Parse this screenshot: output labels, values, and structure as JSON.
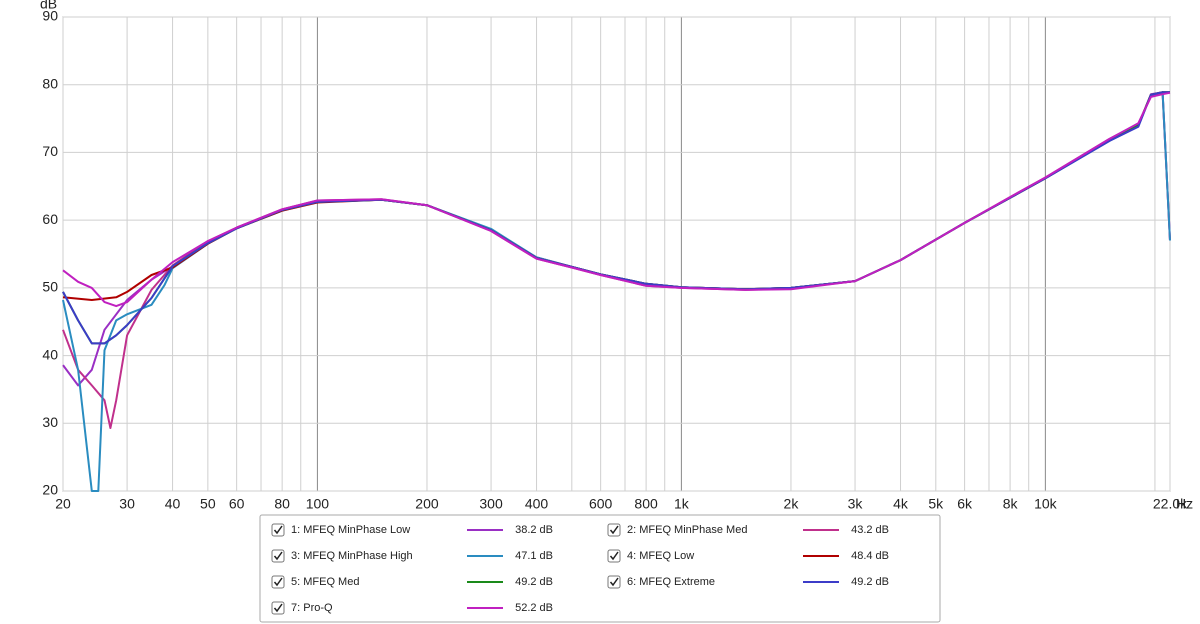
{
  "chart_data": {
    "type": "line",
    "x_label": "Hz",
    "y_label": "dB",
    "log_x": true,
    "xlim": [
      20,
      22000
    ],
    "ylim": [
      20,
      90
    ],
    "xticks": [
      20,
      30,
      40,
      50,
      60,
      80,
      100,
      200,
      300,
      400,
      600,
      800,
      {
        "value": 1000,
        "label": "1k"
      },
      {
        "value": 2000,
        "label": "2k"
      },
      {
        "value": 3000,
        "label": "3k"
      },
      {
        "value": 4000,
        "label": "4k"
      },
      {
        "value": 5000,
        "label": "5k"
      },
      {
        "value": 6000,
        "label": "6k"
      },
      {
        "value": 8000,
        "label": "8k"
      },
      {
        "value": 10000,
        "label": "10k"
      },
      {
        "value": 22000,
        "label": "22.0k"
      }
    ],
    "xgrid_minor": [
      70,
      90,
      500,
      700,
      900,
      7000,
      9000,
      20000
    ],
    "yticks": [
      20,
      30,
      40,
      50,
      60,
      70,
      80,
      90
    ],
    "grid": true,
    "series": [
      {
        "name": "1: MFEQ MinPhase Low",
        "color": "#9a2fc4",
        "level": "38.2 dB",
        "x": [
          20,
          22,
          24,
          26,
          30,
          35,
          40,
          50,
          60,
          80,
          100,
          150,
          200,
          300,
          400,
          500,
          600,
          800,
          1000,
          1500,
          2000,
          3000,
          4000,
          6000,
          8000,
          10000,
          15000,
          18000,
          19500,
          21000,
          22000
        ],
        "values": [
          38.6,
          35.6,
          37.9,
          43.8,
          48.2,
          51.2,
          53.2,
          56.8,
          58.9,
          61.5,
          62.8,
          63.0,
          62.2,
          58.6,
          54.5,
          53.1,
          52.0,
          50.5,
          50.1,
          49.8,
          50.0,
          51.0,
          54.1,
          59.6,
          63.3,
          66.2,
          71.8,
          74.0,
          78.6,
          78.9,
          57.0
        ]
      },
      {
        "name": "2: MFEQ MinPhase Med",
        "color": "#c0308c",
        "level": "43.2 dB",
        "x": [
          20,
          22,
          24,
          26,
          27,
          28,
          30,
          35,
          40,
          50,
          60,
          80,
          100,
          150,
          200,
          300,
          400,
          500,
          600,
          800,
          1000,
          1500,
          2000,
          3000,
          4000,
          6000,
          8000,
          10000,
          15000,
          18000,
          19500,
          21000,
          22000
        ],
        "values": [
          43.8,
          37.9,
          35.6,
          33.4,
          29.3,
          33.4,
          43.0,
          49.7,
          53.3,
          56.9,
          58.9,
          61.6,
          62.9,
          63.1,
          62.2,
          58.4,
          54.3,
          53.0,
          51.9,
          50.3,
          50.0,
          49.7,
          49.9,
          51.0,
          54.1,
          59.6,
          63.4,
          66.3,
          72.0,
          74.2,
          78.3,
          78.7,
          57.0
        ]
      },
      {
        "name": "3: MFEQ MinPhase High",
        "color": "#2a8cc0",
        "level": "47.1 dB",
        "x": [
          20,
          22,
          24,
          25,
          26,
          28,
          30,
          35,
          38,
          40,
          50,
          60,
          80,
          100,
          150,
          200,
          300,
          400,
          500,
          600,
          800,
          1000,
          1500,
          2000,
          3000,
          4000,
          6000,
          8000,
          10000,
          15000,
          18000,
          19500,
          21000,
          22000
        ],
        "values": [
          48.2,
          37.9,
          20,
          20,
          40.8,
          45.2,
          46.1,
          47.5,
          50.4,
          52.9,
          56.5,
          58.8,
          61.4,
          62.7,
          63.0,
          62.2,
          58.7,
          54.5,
          53.1,
          52.0,
          50.6,
          50.1,
          49.8,
          50.0,
          51.0,
          54.1,
          59.6,
          63.3,
          66.2,
          71.7,
          73.9,
          78.5,
          78.9,
          57.0
        ]
      },
      {
        "name": "4: MFEQ Low",
        "color": "#b00000",
        "level": "48.4 dB",
        "x": [
          20,
          24,
          28,
          30,
          35,
          40,
          50,
          60,
          80,
          100,
          150,
          200,
          300,
          400,
          500,
          600,
          800,
          1000,
          1500,
          2000,
          3000,
          4000,
          6000,
          8000,
          10000,
          15000,
          18000,
          19500,
          21000,
          22000
        ],
        "values": [
          48.6,
          48.2,
          48.6,
          49.4,
          51.9,
          53.0,
          56.5,
          58.8,
          61.4,
          62.6,
          63.0,
          62.2,
          58.5,
          54.4,
          53.1,
          52.0,
          50.6,
          50.1,
          49.8,
          50.0,
          51.0,
          54.1,
          59.6,
          63.3,
          66.2,
          71.8,
          74.0,
          78.5,
          78.9,
          78.9
        ]
      },
      {
        "name": "5: MFEQ Med",
        "color": "#1a8a1a",
        "level": "49.2 dB",
        "x": [
          20,
          22,
          24,
          26,
          28,
          30,
          35,
          40,
          50,
          60,
          80,
          100,
          150,
          200,
          300,
          400,
          500,
          600,
          800,
          1000,
          1500,
          2000,
          3000,
          4000,
          6000,
          8000,
          10000,
          15000,
          18000,
          19500,
          21000,
          22000
        ],
        "values": [
          49.4,
          45.2,
          41.8,
          41.8,
          43.0,
          44.5,
          48.5,
          53.2,
          56.6,
          58.8,
          61.5,
          62.7,
          63.0,
          62.2,
          58.5,
          54.4,
          53.1,
          52.0,
          50.6,
          50.1,
          49.8,
          50.0,
          51.0,
          54.1,
          59.6,
          63.3,
          66.2,
          71.8,
          74.0,
          78.5,
          78.9,
          78.9
        ]
      },
      {
        "name": "6: MFEQ Extreme",
        "color": "#3c3cc8",
        "level": "49.2 dB",
        "x": [
          20,
          22,
          24,
          26,
          28,
          30,
          35,
          40,
          50,
          60,
          80,
          100,
          150,
          200,
          300,
          400,
          500,
          600,
          800,
          1000,
          1500,
          2000,
          3000,
          4000,
          6000,
          8000,
          10000,
          15000,
          18000,
          19500,
          21000,
          22000
        ],
        "values": [
          49.4,
          45.2,
          41.8,
          41.8,
          43.0,
          44.5,
          48.5,
          53.2,
          56.6,
          58.8,
          61.5,
          62.7,
          63.0,
          62.2,
          58.5,
          54.4,
          53.1,
          52.0,
          50.6,
          50.1,
          49.8,
          50.0,
          51.0,
          54.1,
          59.6,
          63.3,
          66.2,
          71.7,
          73.8,
          78.5,
          78.9,
          78.9
        ]
      },
      {
        "name": "7: Pro-Q",
        "color": "#c020c0",
        "level": "52.2 dB",
        "x": [
          20,
          22,
          24,
          26,
          28,
          30,
          35,
          40,
          50,
          60,
          80,
          100,
          150,
          200,
          300,
          400,
          500,
          600,
          800,
          1000,
          1500,
          2000,
          3000,
          4000,
          6000,
          8000,
          10000,
          15000,
          18000,
          19500,
          21000,
          22000
        ],
        "values": [
          52.6,
          50.9,
          50.0,
          47.9,
          47.3,
          47.9,
          51.2,
          53.8,
          56.9,
          58.9,
          61.6,
          62.9,
          63.1,
          62.2,
          58.4,
          54.3,
          53.0,
          51.9,
          50.3,
          50.0,
          49.7,
          49.8,
          51.0,
          54.1,
          59.6,
          63.4,
          66.3,
          72.0,
          74.3,
          78.2,
          78.6,
          78.8
        ]
      }
    ]
  }
}
